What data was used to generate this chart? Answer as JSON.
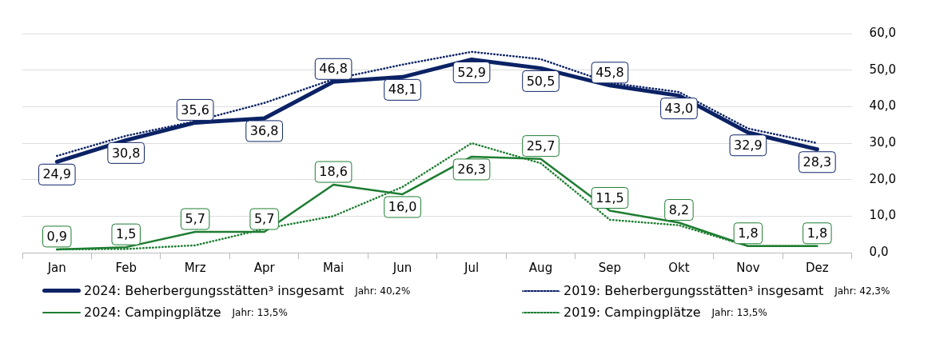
{
  "chart_data": {
    "type": "line",
    "categories": [
      "Jan",
      "Feb",
      "Mrz",
      "Apr",
      "Mai",
      "Jun",
      "Jul",
      "Aug",
      "Sep",
      "Okt",
      "Nov",
      "Dez"
    ],
    "series": [
      {
        "name": "2024: Beherbergungsstätten³ insgesamt",
        "color": "#0b2265",
        "line_style": "solid",
        "values": [
          24.9,
          30.8,
          35.6,
          36.8,
          46.8,
          48.1,
          52.9,
          50.5,
          45.8,
          43.0,
          32.9,
          28.3
        ],
        "value_labels": [
          "24,9",
          "30,8",
          "35,6",
          "36,8",
          "46,8",
          "48,1",
          "52,9",
          "50,5",
          "45,8",
          "43,0",
          "32,9",
          "28,3"
        ]
      },
      {
        "name": "2024: Campingplätze",
        "color": "#1e7d32",
        "line_style": "solid",
        "values": [
          0.9,
          1.5,
          5.7,
          5.7,
          18.6,
          16.0,
          26.3,
          25.7,
          11.5,
          8.2,
          1.8,
          1.8
        ],
        "value_labels": [
          "0,9",
          "1,5",
          "5,7",
          "5,7",
          "18,6",
          "16,0",
          "26,3",
          "25,7",
          "11,5",
          "8,2",
          "1,8",
          "1,8"
        ]
      },
      {
        "name": "2019: Beherbergungsstätten³ insgesamt",
        "color": "#0b2265",
        "line_style": "dotted",
        "values": [
          26.5,
          32,
          36,
          41,
          47.5,
          51.5,
          55,
          53,
          46.5,
          44,
          34,
          30
        ]
      },
      {
        "name": "2019: Campingplätze",
        "color": "#1e7d32",
        "line_style": "dotted",
        "values": [
          0.9,
          1,
          2,
          6.5,
          10,
          18,
          30,
          24.5,
          9,
          7.5,
          1.8,
          1.8
        ]
      }
    ],
    "annotations": [
      "Jahr: 40,2%",
      "Jahr: 13,5%",
      "Jahr: 42,3%",
      "Jahr: 13,5%"
    ],
    "ylim": [
      0,
      60
    ],
    "yticks": [
      {
        "value": 0,
        "label": "0,0"
      },
      {
        "value": 10,
        "label": "10,0"
      },
      {
        "value": 20,
        "label": "20,0"
      },
      {
        "value": 30,
        "label": "30,0"
      },
      {
        "value": 40,
        "label": "40,0"
      },
      {
        "value": 50,
        "label": "50,0"
      },
      {
        "value": 60,
        "label": "60,0"
      }
    ],
    "grid": "y",
    "legend": "bottom"
  }
}
